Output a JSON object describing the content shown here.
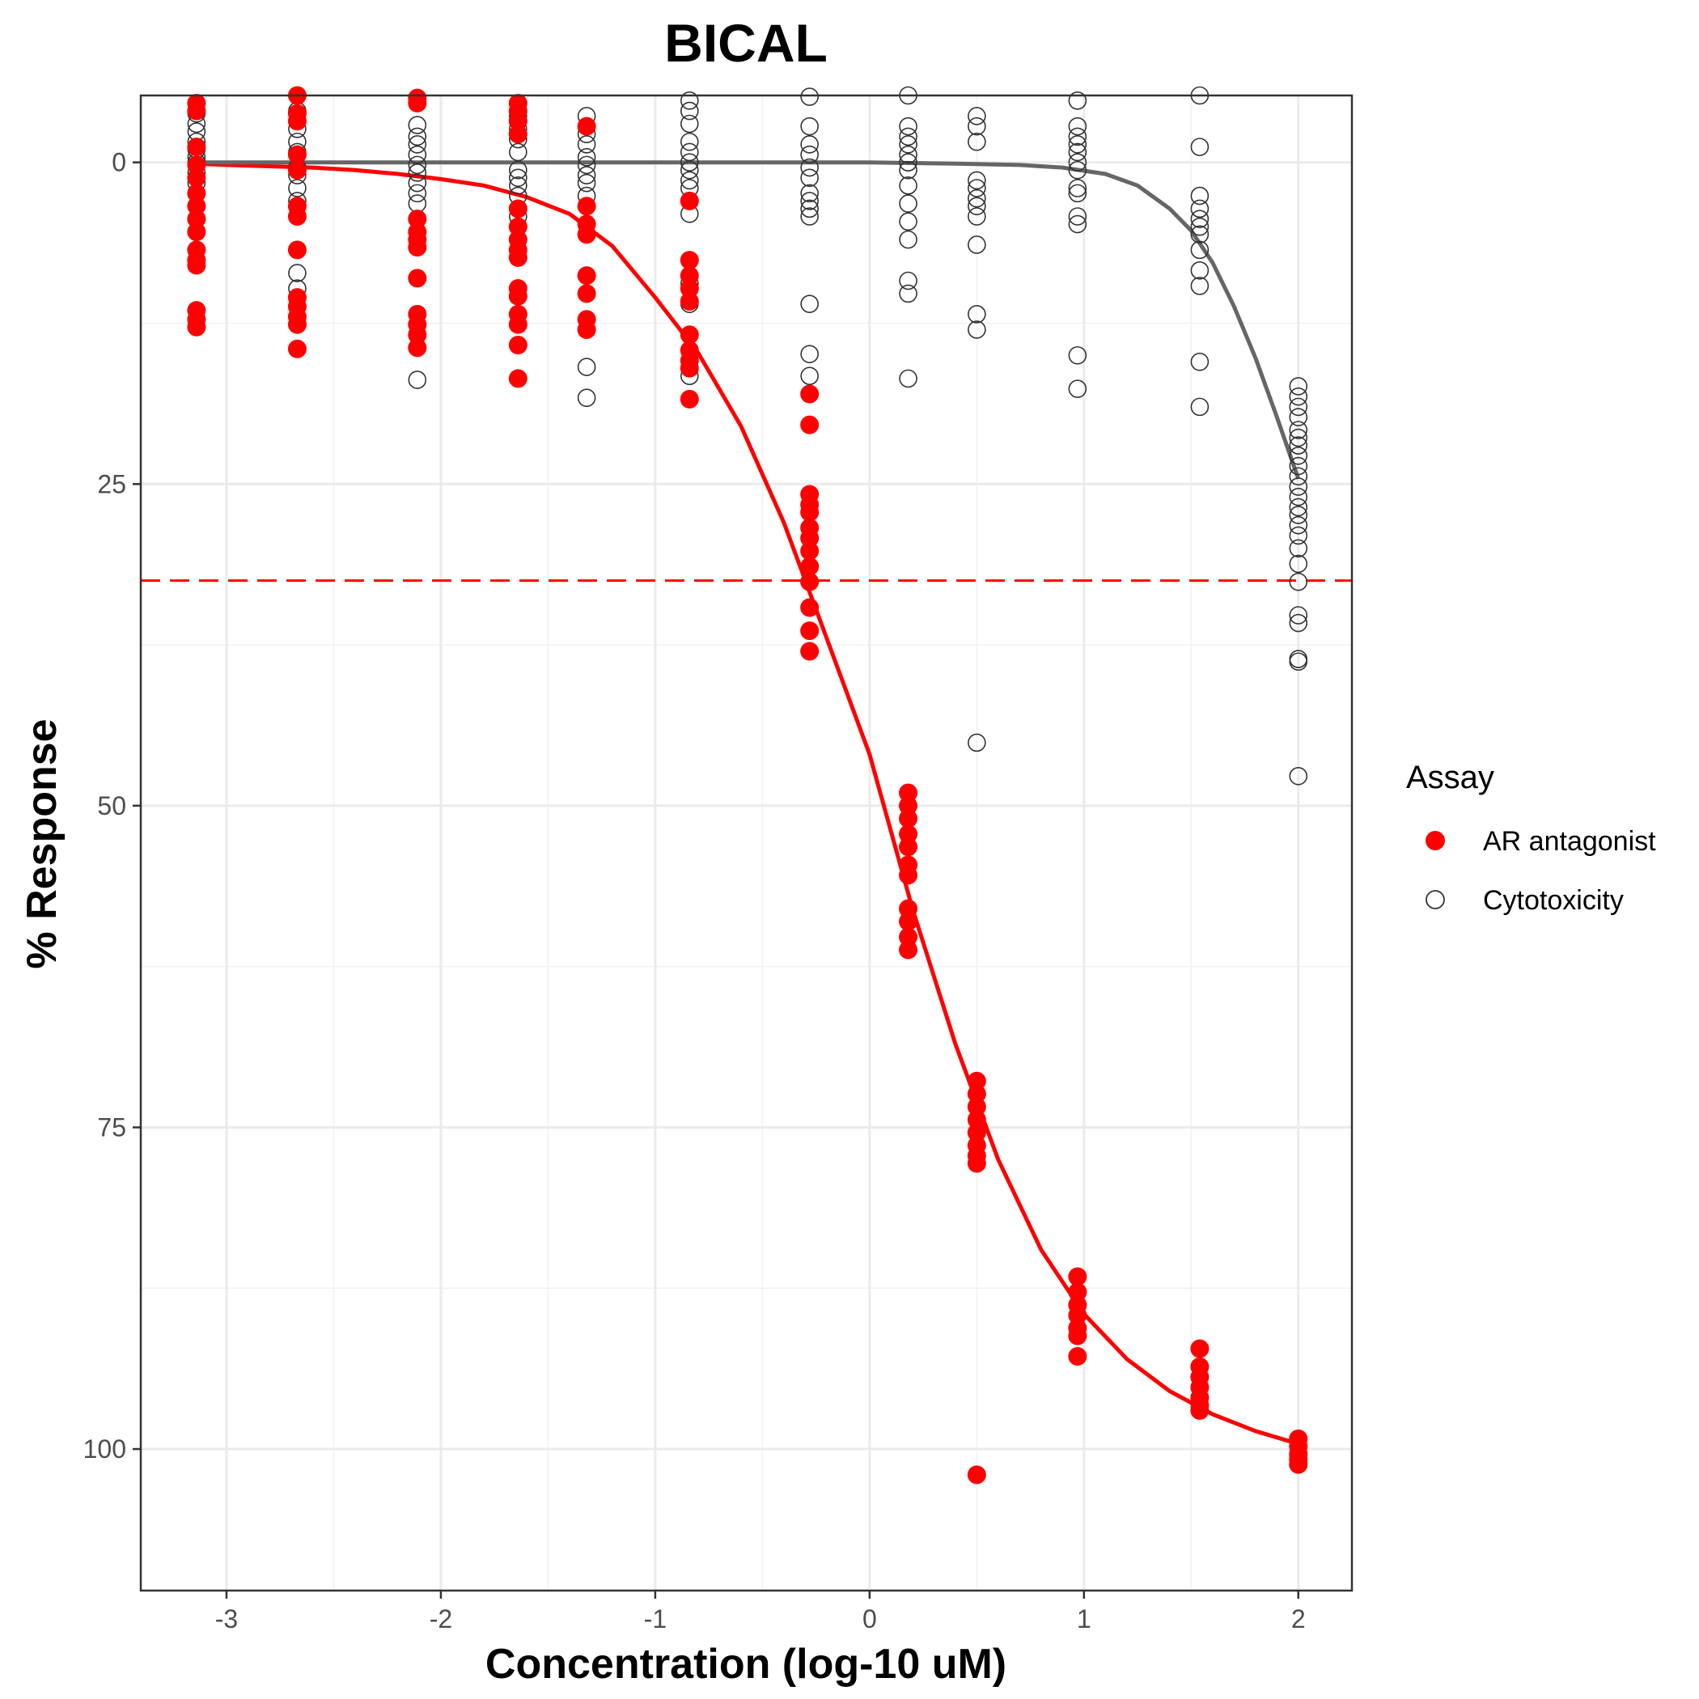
{
  "chart_data": {
    "type": "scatter",
    "title": "BICAL",
    "xlabel": "Concentration (log-10 uM)",
    "ylabel": "% Response",
    "xlim": [
      -3.4,
      2.25
    ],
    "ylim": [
      111,
      -5.2
    ],
    "y_reversed": true,
    "x_ticks": [
      -3,
      -2,
      -1,
      0,
      1,
      2
    ],
    "x_tick_labels": [
      "-3",
      "-2",
      "-1",
      "0",
      "1",
      "2"
    ],
    "y_ticks": [
      0,
      25,
      50,
      75,
      100
    ],
    "y_tick_labels": [
      "0",
      "25",
      "50",
      "75",
      "100"
    ],
    "grid": true,
    "threshold_line": {
      "y": 32.5,
      "color": "#ff0000",
      "style": "dashed"
    },
    "legend": {
      "title": "Assay",
      "placement": "right",
      "entries": [
        {
          "label": "AR antagonist",
          "marker": "filled-circle",
          "color": "#ff0000"
        },
        {
          "label": "Cytotoxicity",
          "marker": "open-circle",
          "color": "#333333"
        }
      ]
    },
    "series": [
      {
        "name": "AR antagonist",
        "marker": "filled-circle",
        "color": "#ff0000",
        "points": [
          [
            -3.14,
            -4.6
          ],
          [
            -3.14,
            -4.0
          ],
          [
            -3.14,
            -1.2
          ],
          [
            -3.14,
            0.2
          ],
          [
            -3.14,
            1.2
          ],
          [
            -3.14,
            2.4
          ],
          [
            -3.14,
            3.4
          ],
          [
            -3.14,
            4.4
          ],
          [
            -3.14,
            5.4
          ],
          [
            -3.14,
            6.8
          ],
          [
            -3.14,
            7.6
          ],
          [
            -3.14,
            8.0
          ],
          [
            -3.14,
            11.5
          ],
          [
            -3.14,
            12.2
          ],
          [
            -3.14,
            12.8
          ],
          [
            -2.67,
            -5.3
          ],
          [
            -2.67,
            -3.8
          ],
          [
            -2.67,
            -3.2
          ],
          [
            -2.67,
            -0.6
          ],
          [
            -2.67,
            0.6
          ],
          [
            -2.67,
            3.4
          ],
          [
            -2.67,
            4.2
          ],
          [
            -2.67,
            6.8
          ],
          [
            -2.67,
            10.5
          ],
          [
            -2.67,
            11.2
          ],
          [
            -2.67,
            12.0
          ],
          [
            -2.67,
            12.6
          ],
          [
            -2.67,
            14.5
          ],
          [
            -2.11,
            -5.0
          ],
          [
            -2.11,
            -4.6
          ],
          [
            -2.11,
            4.4
          ],
          [
            -2.11,
            5.4
          ],
          [
            -2.11,
            6.0
          ],
          [
            -2.11,
            6.6
          ],
          [
            -2.11,
            9.0
          ],
          [
            -2.11,
            11.8
          ],
          [
            -2.11,
            12.6
          ],
          [
            -2.11,
            13.4
          ],
          [
            -2.11,
            14.4
          ],
          [
            -1.64,
            -4.6
          ],
          [
            -1.64,
            -4.0
          ],
          [
            -1.64,
            -3.2
          ],
          [
            -1.64,
            -2.2
          ],
          [
            -1.64,
            3.6
          ],
          [
            -1.64,
            5.0
          ],
          [
            -1.64,
            6.0
          ],
          [
            -1.64,
            6.8
          ],
          [
            -1.64,
            7.4
          ],
          [
            -1.64,
            9.8
          ],
          [
            -1.64,
            10.4
          ],
          [
            -1.64,
            11.8
          ],
          [
            -1.64,
            12.6
          ],
          [
            -1.64,
            14.2
          ],
          [
            -1.64,
            16.8
          ],
          [
            -1.32,
            -2.8
          ],
          [
            -1.32,
            3.4
          ],
          [
            -1.32,
            4.8
          ],
          [
            -1.32,
            5.6
          ],
          [
            -1.32,
            8.8
          ],
          [
            -1.32,
            10.2
          ],
          [
            -1.32,
            12.2
          ],
          [
            -1.32,
            13.0
          ],
          [
            -0.84,
            3.0
          ],
          [
            -0.84,
            7.6
          ],
          [
            -0.84,
            8.8
          ],
          [
            -0.84,
            9.8
          ],
          [
            -0.84,
            10.8
          ],
          [
            -0.84,
            13.4
          ],
          [
            -0.84,
            14.6
          ],
          [
            -0.84,
            15.4
          ],
          [
            -0.84,
            16.0
          ],
          [
            -0.84,
            18.4
          ],
          [
            -0.28,
            18.0
          ],
          [
            -0.28,
            20.4
          ],
          [
            -0.28,
            25.8
          ],
          [
            -0.28,
            26.6
          ],
          [
            -0.28,
            27.2
          ],
          [
            -0.28,
            28.4
          ],
          [
            -0.28,
            29.2
          ],
          [
            -0.28,
            30.2
          ],
          [
            -0.28,
            31.4
          ],
          [
            -0.28,
            32.6
          ],
          [
            -0.28,
            34.6
          ],
          [
            -0.28,
            36.4
          ],
          [
            -0.28,
            38.0
          ],
          [
            0.18,
            49.0
          ],
          [
            0.18,
            50.0
          ],
          [
            0.18,
            51.0
          ],
          [
            0.18,
            52.2
          ],
          [
            0.18,
            53.2
          ],
          [
            0.18,
            54.6
          ],
          [
            0.18,
            55.4
          ],
          [
            0.18,
            58.0
          ],
          [
            0.18,
            59.0
          ],
          [
            0.18,
            60.2
          ],
          [
            0.18,
            61.2
          ],
          [
            0.5,
            71.4
          ],
          [
            0.5,
            72.4
          ],
          [
            0.5,
            73.4
          ],
          [
            0.5,
            74.4
          ],
          [
            0.5,
            75.4
          ],
          [
            0.5,
            76.4
          ],
          [
            0.5,
            77.2
          ],
          [
            0.5,
            77.8
          ],
          [
            0.5,
            102.0
          ],
          [
            0.97,
            86.6
          ],
          [
            0.97,
            87.8
          ],
          [
            0.97,
            88.8
          ],
          [
            0.97,
            89.6
          ],
          [
            0.97,
            90.6
          ],
          [
            0.97,
            91.2
          ],
          [
            0.97,
            92.8
          ],
          [
            1.54,
            92.2
          ],
          [
            1.54,
            93.6
          ],
          [
            1.54,
            94.4
          ],
          [
            1.54,
            95.2
          ],
          [
            1.54,
            96.0
          ],
          [
            1.54,
            96.6
          ],
          [
            1.54,
            97.0
          ],
          [
            2.0,
            99.2
          ],
          [
            2.0,
            99.8
          ],
          [
            2.0,
            100.4
          ],
          [
            2.0,
            100.8
          ],
          [
            2.0,
            101.2
          ]
        ],
        "curve": {
          "x": [
            -3.14,
            -3.0,
            -2.8,
            -2.6,
            -2.4,
            -2.2,
            -2.0,
            -1.8,
            -1.6,
            -1.4,
            -1.2,
            -1.0,
            -0.8,
            -0.6,
            -0.4,
            -0.2,
            0.0,
            0.2,
            0.4,
            0.6,
            0.8,
            1.0,
            1.2,
            1.4,
            1.6,
            1.8,
            2.0
          ],
          "y": [
            0.1,
            0.2,
            0.3,
            0.4,
            0.6,
            0.9,
            1.3,
            1.8,
            2.7,
            4.0,
            6.5,
            10.5,
            14.8,
            20.5,
            28.0,
            37.0,
            46.0,
            58.0,
            68.5,
            77.5,
            84.5,
            89.5,
            93.0,
            95.5,
            97.3,
            98.6,
            99.6
          ]
        }
      },
      {
        "name": "Cytotoxicity",
        "marker": "open-circle",
        "color": "#333333",
        "points": [
          [
            -3.14,
            -3.8
          ],
          [
            -3.14,
            -3.0
          ],
          [
            -3.14,
            -2.4
          ],
          [
            -3.14,
            -1.6
          ],
          [
            -3.14,
            -1.0
          ],
          [
            -3.14,
            -0.4
          ],
          [
            -3.14,
            0.0
          ],
          [
            -3.14,
            0.8
          ],
          [
            -3.14,
            1.6
          ],
          [
            -2.67,
            -4.0
          ],
          [
            -2.67,
            -3.2
          ],
          [
            -2.67,
            -2.6
          ],
          [
            -2.67,
            -1.6
          ],
          [
            -2.67,
            -0.8
          ],
          [
            -2.67,
            0.4
          ],
          [
            -2.67,
            1.0
          ],
          [
            -2.67,
            2.0
          ],
          [
            -2.67,
            3.0
          ],
          [
            -2.67,
            8.6
          ],
          [
            -2.67,
            9.8
          ],
          [
            -2.11,
            -2.9
          ],
          [
            -2.11,
            -2.0
          ],
          [
            -2.11,
            -1.4
          ],
          [
            -2.11,
            -0.6
          ],
          [
            -2.11,
            0.2
          ],
          [
            -2.11,
            0.8
          ],
          [
            -2.11,
            1.6
          ],
          [
            -2.11,
            2.4
          ],
          [
            -2.11,
            3.2
          ],
          [
            -2.11,
            16.9
          ],
          [
            -1.64,
            -3.6
          ],
          [
            -1.64,
            -2.6
          ],
          [
            -1.64,
            -1.8
          ],
          [
            -1.64,
            -0.8
          ],
          [
            -1.64,
            0.6
          ],
          [
            -1.64,
            1.2
          ],
          [
            -1.64,
            1.8
          ],
          [
            -1.64,
            2.6
          ],
          [
            -1.64,
            4.2
          ],
          [
            -1.32,
            -3.6
          ],
          [
            -1.32,
            -2.8
          ],
          [
            -1.32,
            -2.2
          ],
          [
            -1.32,
            -1.4
          ],
          [
            -1.32,
            -0.4
          ],
          [
            -1.32,
            0.2
          ],
          [
            -1.32,
            1.0
          ],
          [
            -1.32,
            1.6
          ],
          [
            -1.32,
            2.6
          ],
          [
            -1.32,
            15.9
          ],
          [
            -1.32,
            18.3
          ],
          [
            -0.84,
            -4.8
          ],
          [
            -0.84,
            -4.0
          ],
          [
            -0.84,
            -3.0
          ],
          [
            -0.84,
            -1.6
          ],
          [
            -0.84,
            -0.8
          ],
          [
            -0.84,
            0.0
          ],
          [
            -0.84,
            0.6
          ],
          [
            -0.84,
            1.4
          ],
          [
            -0.84,
            2.0
          ],
          [
            -0.84,
            3.0
          ],
          [
            -0.84,
            4.0
          ],
          [
            -0.84,
            9.4
          ],
          [
            -0.84,
            11.0
          ],
          [
            -0.84,
            16.6
          ],
          [
            -0.28,
            -5.1
          ],
          [
            -0.28,
            -2.8
          ],
          [
            -0.28,
            -1.4
          ],
          [
            -0.28,
            -0.6
          ],
          [
            -0.28,
            0.4
          ],
          [
            -0.28,
            1.2
          ],
          [
            -0.28,
            2.4
          ],
          [
            -0.28,
            3.0
          ],
          [
            -0.28,
            3.6
          ],
          [
            -0.28,
            4.2
          ],
          [
            -0.28,
            11.0
          ],
          [
            -0.28,
            14.9
          ],
          [
            -0.28,
            16.6
          ],
          [
            0.18,
            -5.3
          ],
          [
            0.18,
            -2.8
          ],
          [
            0.18,
            -2.0
          ],
          [
            0.18,
            -1.4
          ],
          [
            0.18,
            -0.6
          ],
          [
            0.18,
            0.0
          ],
          [
            0.18,
            0.6
          ],
          [
            0.18,
            1.8
          ],
          [
            0.18,
            3.2
          ],
          [
            0.18,
            4.6
          ],
          [
            0.18,
            6.0
          ],
          [
            0.18,
            9.2
          ],
          [
            0.18,
            10.2
          ],
          [
            0.18,
            16.8
          ],
          [
            0.5,
            -3.6
          ],
          [
            0.5,
            -2.8
          ],
          [
            0.5,
            -1.6
          ],
          [
            0.5,
            1.4
          ],
          [
            0.5,
            2.0
          ],
          [
            0.5,
            2.8
          ],
          [
            0.5,
            3.4
          ],
          [
            0.5,
            4.2
          ],
          [
            0.5,
            6.4
          ],
          [
            0.5,
            11.8
          ],
          [
            0.5,
            13.0
          ],
          [
            0.5,
            45.1
          ],
          [
            0.97,
            -4.8
          ],
          [
            0.97,
            -2.8
          ],
          [
            0.97,
            -2.0
          ],
          [
            0.97,
            -1.4
          ],
          [
            0.97,
            -0.8
          ],
          [
            0.97,
            0.0
          ],
          [
            0.97,
            0.6
          ],
          [
            0.97,
            2.0
          ],
          [
            0.97,
            2.4
          ],
          [
            0.97,
            4.2
          ],
          [
            0.97,
            4.8
          ],
          [
            0.97,
            15.0
          ],
          [
            0.97,
            17.6
          ],
          [
            1.54,
            -5.6
          ],
          [
            1.54,
            -1.2
          ],
          [
            1.54,
            2.6
          ],
          [
            1.54,
            3.6
          ],
          [
            1.54,
            4.4
          ],
          [
            1.54,
            5.0
          ],
          [
            1.54,
            5.6
          ],
          [
            1.54,
            6.8
          ],
          [
            1.54,
            8.4
          ],
          [
            1.54,
            9.6
          ],
          [
            1.54,
            15.5
          ],
          [
            1.54,
            19.0
          ],
          [
            2.0,
            17.4
          ],
          [
            2.0,
            18.2
          ],
          [
            2.0,
            19.0
          ],
          [
            2.0,
            19.8
          ],
          [
            2.0,
            20.8
          ],
          [
            2.0,
            21.4
          ],
          [
            2.0,
            22.0
          ],
          [
            2.0,
            22.8
          ],
          [
            2.0,
            23.6
          ],
          [
            2.0,
            24.4
          ],
          [
            2.0,
            25.2
          ],
          [
            2.0,
            26.0
          ],
          [
            2.0,
            26.8
          ],
          [
            2.0,
            27.4
          ],
          [
            2.0,
            28.2
          ],
          [
            2.0,
            29.0
          ],
          [
            2.0,
            30.0
          ],
          [
            2.0,
            31.2
          ],
          [
            2.0,
            32.6
          ],
          [
            2.0,
            35.2
          ],
          [
            2.0,
            35.8
          ],
          [
            2.0,
            38.6
          ],
          [
            2.0,
            38.8
          ],
          [
            2.0,
            47.7
          ]
        ],
        "curve": {
          "x": [
            -3.14,
            -2.5,
            -2.0,
            -1.5,
            -1.0,
            -0.5,
            0.0,
            0.4,
            0.7,
            0.9,
            1.1,
            1.25,
            1.4,
            1.5,
            1.6,
            1.7,
            1.8,
            1.9,
            2.0
          ],
          "y": [
            0.0,
            0.0,
            0.0,
            0.0,
            0.0,
            0.0,
            0.0,
            0.1,
            0.2,
            0.4,
            0.9,
            1.8,
            3.6,
            5.3,
            7.8,
            11.2,
            15.2,
            19.8,
            24.6
          ]
        }
      }
    ]
  }
}
